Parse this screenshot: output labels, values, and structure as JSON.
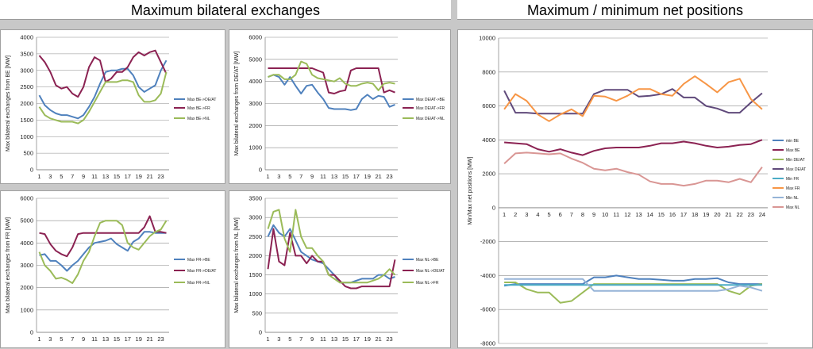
{
  "headers": {
    "left": "Maximum bilateral exchanges",
    "right": "Maximum / minimum net positions"
  },
  "chart_data": [
    {
      "id": "be",
      "type": "line",
      "ylabel": "Max bilateral exchanges from BE [MW]",
      "ylim": [
        0,
        4000
      ],
      "yticks": [
        0,
        500,
        1000,
        1500,
        2000,
        2500,
        3000,
        3500,
        4000
      ],
      "x": [
        1,
        2,
        3,
        4,
        5,
        6,
        7,
        8,
        9,
        10,
        11,
        12,
        13,
        14,
        15,
        16,
        17,
        18,
        19,
        20,
        21,
        22,
        23,
        24
      ],
      "xtick_labels": [
        "1",
        "3",
        "5",
        "7",
        "9",
        "11",
        "13",
        "15",
        "17",
        "19",
        "21",
        "23"
      ],
      "grid": true,
      "legend_position": "right",
      "series": [
        {
          "name": "Max BE->DE/AT",
          "color": "#4f81bd",
          "values": [
            2250,
            1950,
            1800,
            1700,
            1650,
            1650,
            1600,
            1550,
            1650,
            1900,
            2200,
            2600,
            2950,
            3000,
            3000,
            3050,
            3050,
            2850,
            2500,
            2350,
            2450,
            2550,
            3000,
            3300
          ]
        },
        {
          "name": "Max BE->FR",
          "color": "#8b2252",
          "values": [
            3450,
            3250,
            2950,
            2550,
            2450,
            2500,
            2300,
            2200,
            2500,
            3100,
            3400,
            3300,
            2650,
            2750,
            2950,
            2950,
            3100,
            3400,
            3550,
            3450,
            3550,
            3600,
            3250,
            2900
          ]
        },
        {
          "name": "Max BE->NL",
          "color": "#9bbb59",
          "values": [
            1900,
            1650,
            1550,
            1500,
            1450,
            1450,
            1450,
            1400,
            1500,
            1750,
            2050,
            2350,
            2650,
            2650,
            2650,
            2700,
            2700,
            2650,
            2250,
            2050,
            2050,
            2100,
            2300,
            2950
          ]
        }
      ]
    },
    {
      "id": "deat",
      "type": "line",
      "ylabel": "Max bilateral exchanges from DE/AT [MW]",
      "ylim": [
        0,
        6000
      ],
      "yticks": [
        0,
        1000,
        2000,
        3000,
        4000,
        5000,
        6000
      ],
      "x": [
        1,
        2,
        3,
        4,
        5,
        6,
        7,
        8,
        9,
        10,
        11,
        12,
        13,
        14,
        15,
        16,
        17,
        18,
        19,
        20,
        21,
        22,
        23,
        24
      ],
      "xtick_labels": [
        "1",
        "3",
        "5",
        "7",
        "9",
        "11",
        "13",
        "15",
        "17",
        "19",
        "21",
        "23"
      ],
      "grid": true,
      "legend_position": "right",
      "series": [
        {
          "name": "Max DE/AT->BE",
          "color": "#4f81bd",
          "values": [
            4200,
            4300,
            4200,
            3850,
            4200,
            3800,
            3450,
            3800,
            3850,
            3500,
            3200,
            2800,
            2750,
            2750,
            2750,
            2700,
            2750,
            3200,
            3400,
            3200,
            3350,
            3300,
            2850,
            2950
          ]
        },
        {
          "name": "Max DE/AT->FR",
          "color": "#8b2252",
          "values": [
            4600,
            4600,
            4600,
            4600,
            4600,
            4600,
            4600,
            4600,
            4600,
            4500,
            4400,
            3500,
            3450,
            3550,
            3600,
            4500,
            4600,
            4600,
            4600,
            4600,
            4600,
            3500,
            3600,
            3500
          ]
        },
        {
          "name": "Max DE/AT->NL",
          "color": "#9bbb59",
          "values": [
            4200,
            4300,
            4300,
            4100,
            4100,
            4300,
            4900,
            4800,
            4300,
            4150,
            4100,
            4050,
            4000,
            4150,
            3900,
            3800,
            3800,
            3900,
            3950,
            3900,
            3600,
            3900,
            3950,
            3900
          ]
        }
      ]
    },
    {
      "id": "fr",
      "type": "line",
      "ylabel": "Max bilateral exchanges from FR [MW]",
      "ylim": [
        0,
        6000
      ],
      "yticks": [
        0,
        1000,
        2000,
        3000,
        4000,
        5000,
        6000
      ],
      "x": [
        1,
        2,
        3,
        4,
        5,
        6,
        7,
        8,
        9,
        10,
        11,
        12,
        13,
        14,
        15,
        16,
        17,
        18,
        19,
        20,
        21,
        22,
        23,
        24
      ],
      "xtick_labels": [
        "1",
        "3",
        "5",
        "7",
        "9",
        "11",
        "13",
        "15",
        "17",
        "19",
        "21",
        "23"
      ],
      "grid": true,
      "legend_position": "right",
      "series": [
        {
          "name": "Max FR->BE",
          "color": "#4f81bd",
          "values": [
            3450,
            3500,
            3200,
            3200,
            3000,
            2750,
            3000,
            3200,
            3500,
            3800,
            4000,
            4050,
            4100,
            4200,
            3950,
            3800,
            3650,
            4050,
            4200,
            4500,
            4500,
            4450,
            4450,
            4450
          ]
        },
        {
          "name": "Max FR->DE/AT",
          "color": "#8b2252",
          "values": [
            4450,
            4400,
            3950,
            3650,
            3500,
            3400,
            3800,
            4400,
            4450,
            4450,
            4450,
            4450,
            4450,
            4450,
            4450,
            4450,
            4450,
            4450,
            4450,
            4700,
            5200,
            4500,
            4500,
            4450
          ]
        },
        {
          "name": "Max FR->NL",
          "color": "#9bbb59",
          "values": [
            3600,
            3000,
            2750,
            2400,
            2450,
            2350,
            2200,
            2600,
            3200,
            3600,
            4300,
            4900,
            5000,
            5000,
            5000,
            4800,
            4000,
            3800,
            3700,
            4000,
            4300,
            4500,
            4600,
            5000
          ]
        }
      ]
    },
    {
      "id": "nl",
      "type": "line",
      "ylabel": "Max bilateral exchanges from NL [MW]",
      "ylim": [
        0,
        3500
      ],
      "yticks": [
        0,
        500,
        1000,
        1500,
        2000,
        2500,
        3000,
        3500
      ],
      "x": [
        1,
        2,
        3,
        4,
        5,
        6,
        7,
        8,
        9,
        10,
        11,
        12,
        13,
        14,
        15,
        16,
        17,
        18,
        19,
        20,
        21,
        22,
        23,
        24
      ],
      "xtick_labels": [
        "1",
        "3",
        "5",
        "7",
        "9",
        "11",
        "13",
        "15",
        "17",
        "19",
        "21",
        "23"
      ],
      "grid": true,
      "legend_position": "right",
      "series": [
        {
          "name": "Max NL->BE",
          "color": "#4f81bd",
          "values": [
            2500,
            2800,
            2600,
            2500,
            2700,
            2400,
            2100,
            2000,
            1900,
            1850,
            1800,
            1650,
            1500,
            1300,
            1300,
            1300,
            1350,
            1400,
            1400,
            1400,
            1500,
            1500,
            1400,
            1450
          ]
        },
        {
          "name": "Max NL->DE/AT",
          "color": "#8b2252",
          "values": [
            1650,
            2700,
            1850,
            1750,
            2600,
            2000,
            2000,
            1800,
            2000,
            1850,
            1850,
            1500,
            1500,
            1350,
            1200,
            1150,
            1150,
            1200,
            1200,
            1200,
            1200,
            1200,
            1200,
            1900
          ]
        },
        {
          "name": "Max NL->FR",
          "color": "#9bbb59",
          "values": [
            2700,
            3150,
            3200,
            2450,
            2100,
            3200,
            2500,
            2200,
            2200,
            2000,
            1850,
            1500,
            1400,
            1300,
            1300,
            1300,
            1300,
            1300,
            1300,
            1350,
            1400,
            1500,
            1650,
            1500
          ]
        }
      ]
    },
    {
      "id": "net",
      "type": "line",
      "ylabel": "Min/Max net positions [MW]",
      "ylim": [
        -8000,
        10000
      ],
      "yticks": [
        -8000,
        -6000,
        -4000,
        -2000,
        0,
        2000,
        4000,
        6000,
        8000,
        10000
      ],
      "x": [
        1,
        2,
        3,
        4,
        5,
        6,
        7,
        8,
        9,
        10,
        11,
        12,
        13,
        14,
        15,
        16,
        17,
        18,
        19,
        20,
        21,
        22,
        23,
        24
      ],
      "xtick_labels": [
        "1",
        "2",
        "3",
        "4",
        "5",
        "6",
        "7",
        "8",
        "9",
        "10",
        "11",
        "12",
        "13",
        "14",
        "15",
        "16",
        "17",
        "18",
        "19",
        "20",
        "21",
        "22",
        "23",
        "24"
      ],
      "grid": true,
      "legend_position": "right",
      "series": [
        {
          "name": "min BE",
          "color": "#4f81bd",
          "values": [
            -4600,
            -4500,
            -4500,
            -4500,
            -4500,
            -4500,
            -4500,
            -4500,
            -4100,
            -4100,
            -4000,
            -4100,
            -4200,
            -4200,
            -4250,
            -4300,
            -4300,
            -4200,
            -4200,
            -4150,
            -4400,
            -4500,
            -4500,
            -4500
          ]
        },
        {
          "name": "Max BE",
          "color": "#8b2252",
          "values": [
            3850,
            3800,
            3750,
            3450,
            3300,
            3450,
            3250,
            3100,
            3350,
            3500,
            3550,
            3550,
            3550,
            3650,
            3800,
            3800,
            3900,
            3800,
            3650,
            3550,
            3600,
            3700,
            3750,
            4000
          ]
        },
        {
          "name": "Min DE/AT",
          "color": "#9bbb59",
          "values": [
            -4400,
            -4400,
            -4800,
            -5000,
            -5000,
            -5600,
            -5500,
            -5000,
            -4500,
            -4500,
            -4500,
            -4500,
            -4500,
            -4500,
            -4500,
            -4500,
            -4500,
            -4500,
            -4500,
            -4500,
            -4900,
            -5100,
            -4600,
            -4500
          ]
        },
        {
          "name": "Max DE/AT",
          "color": "#604a7b",
          "values": [
            6900,
            5600,
            5600,
            5550,
            5550,
            5550,
            5550,
            5550,
            6700,
            6950,
            6950,
            6950,
            6550,
            6600,
            6700,
            7000,
            6500,
            6500,
            6000,
            5850,
            5600,
            5600,
            6200,
            6750
          ]
        },
        {
          "name": "Min FR",
          "color": "#4bacc6",
          "values": [
            -4550,
            -4550,
            -4550,
            -4550,
            -4550,
            -4550,
            -4550,
            -4550,
            -4550,
            -4550,
            -4550,
            -4550,
            -4550,
            -4550,
            -4550,
            -4550,
            -4550,
            -4550,
            -4550,
            -4550,
            -4550,
            -4550,
            -4550,
            -4550
          ]
        },
        {
          "name": "Max FR",
          "color": "#f79646",
          "values": [
            5800,
            6700,
            6300,
            5500,
            5100,
            5500,
            5800,
            5400,
            6600,
            6550,
            6300,
            6600,
            7000,
            7000,
            6700,
            6600,
            7300,
            7750,
            7300,
            6800,
            7400,
            7600,
            6400,
            5800
          ]
        },
        {
          "name": "Min NL",
          "color": "#95b3d7",
          "values": [
            -4200,
            -4200,
            -4200,
            -4200,
            -4200,
            -4200,
            -4200,
            -4200,
            -4900,
            -4900,
            -4900,
            -4900,
            -4900,
            -4900,
            -4900,
            -4900,
            -4900,
            -4900,
            -4900,
            -4900,
            -4800,
            -4600,
            -4700,
            -4900
          ]
        },
        {
          "name": "Max NL",
          "color": "#d99694",
          "values": [
            2600,
            3200,
            3250,
            3200,
            3150,
            3200,
            2900,
            2650,
            2300,
            2200,
            2300,
            2100,
            1950,
            1550,
            1400,
            1400,
            1300,
            1400,
            1600,
            1600,
            1500,
            1700,
            1500,
            2400
          ]
        }
      ]
    }
  ]
}
